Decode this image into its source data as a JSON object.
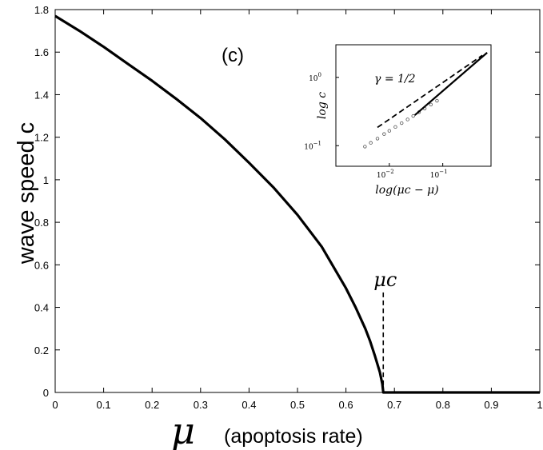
{
  "chart_data": [
    {
      "type": "line",
      "panel_label": "(c)",
      "ylabel": "wave speed c",
      "xlabel_symbol": "μ",
      "xlabel_text": "(apoptosis rate)",
      "xlim": [
        0,
        1
      ],
      "ylim": [
        0,
        1.8
      ],
      "xticks": [
        "0",
        "0.1",
        "0.2",
        "0.3",
        "0.4",
        "0.5",
        "0.6",
        "0.7",
        "0.8",
        "0.9",
        "1"
      ],
      "yticks": [
        "0",
        "0.2",
        "0.4",
        "0.6",
        "0.8",
        "1",
        "1.2",
        "1.4",
        "1.6",
        "1.8"
      ],
      "x": [
        0,
        0.05,
        0.1,
        0.15,
        0.2,
        0.25,
        0.3,
        0.35,
        0.4,
        0.45,
        0.5,
        0.55,
        0.6,
        0.62,
        0.64,
        0.65,
        0.66,
        0.67,
        0.675,
        0.677,
        0.7,
        0.8,
        0.9,
        1.0
      ],
      "y": [
        1.77,
        1.7,
        1.625,
        1.545,
        1.465,
        1.38,
        1.29,
        1.19,
        1.08,
        0.965,
        0.835,
        0.685,
        0.49,
        0.4,
        0.3,
        0.24,
        0.17,
        0.095,
        0.04,
        0,
        0,
        0,
        0,
        0
      ],
      "critical_label": "μc",
      "critical_x": 0.677,
      "critical_line_ymax": 0.47
    },
    {
      "type": "scatter",
      "inset": true,
      "xlabel": "log(μc − μ)",
      "ylabel": "log c",
      "xscale": "log",
      "yscale": "log",
      "xlim": [
        0.001,
        0.8
      ],
      "ylim": [
        0.05,
        3
      ],
      "xtick_values": [
        0.01,
        0.1
      ],
      "ytick_values": [
        0.1,
        1
      ],
      "xtick_base": "10",
      "xtick_exponents": [
        "−2",
        "−1"
      ],
      "ytick_base": "10",
      "ytick_exponents": [
        "−1",
        "0"
      ],
      "annotation": "γ = 1/2",
      "series": [
        {
          "style": "markers",
          "x": [
            0.0035,
            0.0045,
            0.006,
            0.008,
            0.01,
            0.013,
            0.017,
            0.022,
            0.028,
            0.036,
            0.046,
            0.06,
            0.078
          ],
          "y": [
            0.097,
            0.11,
            0.127,
            0.148,
            0.165,
            0.188,
            0.214,
            0.242,
            0.272,
            0.31,
            0.35,
            0.4,
            0.455
          ]
        },
        {
          "style": "solid",
          "x": [
            0.03,
            0.677
          ],
          "y": [
            0.28,
            2.3
          ]
        },
        {
          "style": "dashed",
          "x": [
            0.006,
            0.55
          ],
          "y": [
            0.185,
            2.1
          ]
        }
      ]
    }
  ]
}
